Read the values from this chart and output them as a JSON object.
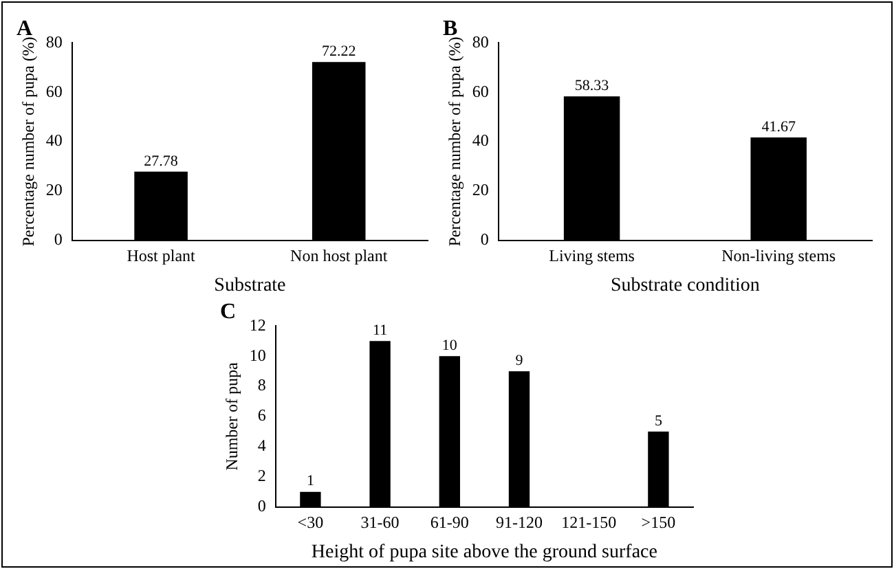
{
  "chart_data": [
    {
      "type": "bar",
      "title": "A",
      "xlabel": "Substrate",
      "ylabel": "Percentage number of pupa (%)",
      "categories": [
        "Host plant",
        "Non host plant"
      ],
      "values": [
        27.78,
        72.22
      ],
      "color": "#000000",
      "ylim": [
        0,
        80
      ],
      "yticks": [
        0,
        20,
        40,
        60,
        80
      ],
      "grid": false,
      "legend": false,
      "data_labels": true
    },
    {
      "type": "bar",
      "title": "B",
      "xlabel": "Substrate condition",
      "ylabel": "Percentage number of pupa (%)",
      "categories": [
        "Living stems",
        "Non-living stems"
      ],
      "values": [
        58.33,
        41.67
      ],
      "color": "#000000",
      "ylim": [
        0,
        80
      ],
      "yticks": [
        0,
        20,
        40,
        60,
        80
      ],
      "grid": false,
      "legend": false,
      "data_labels": true
    },
    {
      "type": "bar",
      "title": "C",
      "xlabel": "Height of pupa site above the ground surface",
      "ylabel": "Number of pupa",
      "categories": [
        "<30",
        "31-60",
        "61-90",
        "91-120",
        "121-150",
        ">150"
      ],
      "values": [
        1,
        11,
        10,
        9,
        null,
        5
      ],
      "color": "#000000",
      "ylim": [
        0,
        12
      ],
      "yticks": [
        0,
        2,
        4,
        6,
        8,
        10,
        12
      ],
      "grid": false,
      "legend": false,
      "data_labels": true
    }
  ]
}
